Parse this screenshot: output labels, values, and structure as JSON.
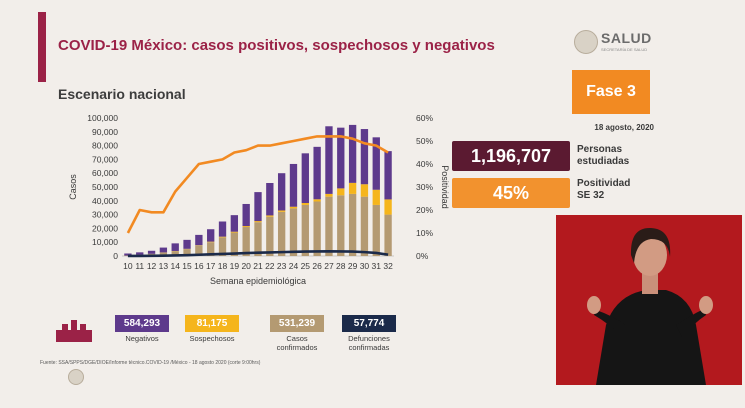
{
  "header": {
    "title": "COVID-19 México: casos positivos, sospechosos y negativos",
    "subtitle": "Escenario nacional",
    "logo_text": "SALUD",
    "logo_subtext": "SECRETARÍA DE SALUD",
    "accent_color": "#9b2247"
  },
  "phase": {
    "label": "Fase 3",
    "color": "#f28a22"
  },
  "date": "18 agosto, 2020",
  "stats": {
    "persons_value": "1,196,707",
    "persons_label_1": "Personas",
    "persons_label_2": "estudiadas",
    "positivity_value": "45%",
    "positivity_label_1": "Positividad",
    "positivity_label_2": "SE 32"
  },
  "totals": [
    {
      "value": "584,293",
      "label_1": "Negativos",
      "label_2": "",
      "color": "#5e3a8c"
    },
    {
      "value": "81,175",
      "label_1": "Sospechosos",
      "label_2": "",
      "color": "#f5b51c"
    },
    {
      "value": "531,239",
      "label_1": "Casos",
      "label_2": "confirmados",
      "color": "#b49a72"
    },
    {
      "value": "57,774",
      "label_1": "Defunciones",
      "label_2": "confirmadas",
      "color": "#1b2a4a"
    }
  ],
  "source": "Fuente: SSA/SPPS/DGE/DIOE/Informe técnico.COVID-19 /México - 18 agosto 2020 (corte 9:00hrs)",
  "chart_data": {
    "type": "bar",
    "stacked": true,
    "xlabel": "Semana epidemiológica",
    "ylabel": "Casos",
    "y2label": "Positividad",
    "ylim": [
      0,
      100000
    ],
    "y2lim": [
      0,
      60
    ],
    "yticks": [
      "0",
      "10,000",
      "20,000",
      "30,000",
      "40,000",
      "50,000",
      "60,000",
      "70,000",
      "80,000",
      "90,000",
      "100,000"
    ],
    "y2ticks": [
      "0%",
      "10%",
      "20%",
      "30%",
      "40%",
      "50%",
      "60%"
    ],
    "categories": [
      "10",
      "11",
      "12",
      "13",
      "14",
      "15",
      "16",
      "17",
      "18",
      "19",
      "20",
      "21",
      "22",
      "23",
      "24",
      "25",
      "26",
      "27",
      "28",
      "29",
      "30",
      "31",
      "32"
    ],
    "series": [
      {
        "name": "Casos confirmados",
        "color": "#b49a72",
        "values": [
          300,
          800,
          1500,
          2500,
          3500,
          5000,
          7500,
          10000,
          13500,
          17000,
          21000,
          24500,
          28500,
          32000,
          34500,
          37000,
          39500,
          43000,
          44000,
          45000,
          43000,
          37000,
          30000
        ]
      },
      {
        "name": "Sospechosos",
        "color": "#f5b51c",
        "values": [
          20,
          50,
          80,
          100,
          150,
          200,
          300,
          400,
          500,
          600,
          700,
          800,
          900,
          1000,
          1200,
          1400,
          1600,
          2000,
          5000,
          8000,
          9000,
          11000,
          11000
        ]
      },
      {
        "name": "Negativos",
        "color": "#5e3a8c",
        "values": [
          1500,
          1800,
          2200,
          3500,
          5500,
          6500,
          7500,
          9000,
          11000,
          12000,
          16000,
          21000,
          23500,
          27000,
          31000,
          36000,
          38000,
          49000,
          44000,
          42000,
          40000,
          38000,
          35000
        ]
      }
    ],
    "line_series": [
      {
        "name": "Positividad",
        "color": "#f28a22",
        "axis": "right",
        "values": [
          10,
          20,
          19,
          19,
          28,
          34,
          40,
          41,
          42,
          45,
          46,
          48,
          48,
          49,
          50,
          51,
          52,
          52,
          52,
          51,
          49,
          48,
          45
        ]
      },
      {
        "name": "Defunciones",
        "color": "#1b2a4a",
        "axis": "left",
        "values": [
          30,
          80,
          150,
          250,
          400,
          600,
          900,
          1200,
          1500,
          1800,
          2100,
          2400,
          2600,
          2800,
          3000,
          3200,
          3300,
          3400,
          3300,
          3200,
          2800,
          2200,
          1000
        ]
      }
    ]
  }
}
